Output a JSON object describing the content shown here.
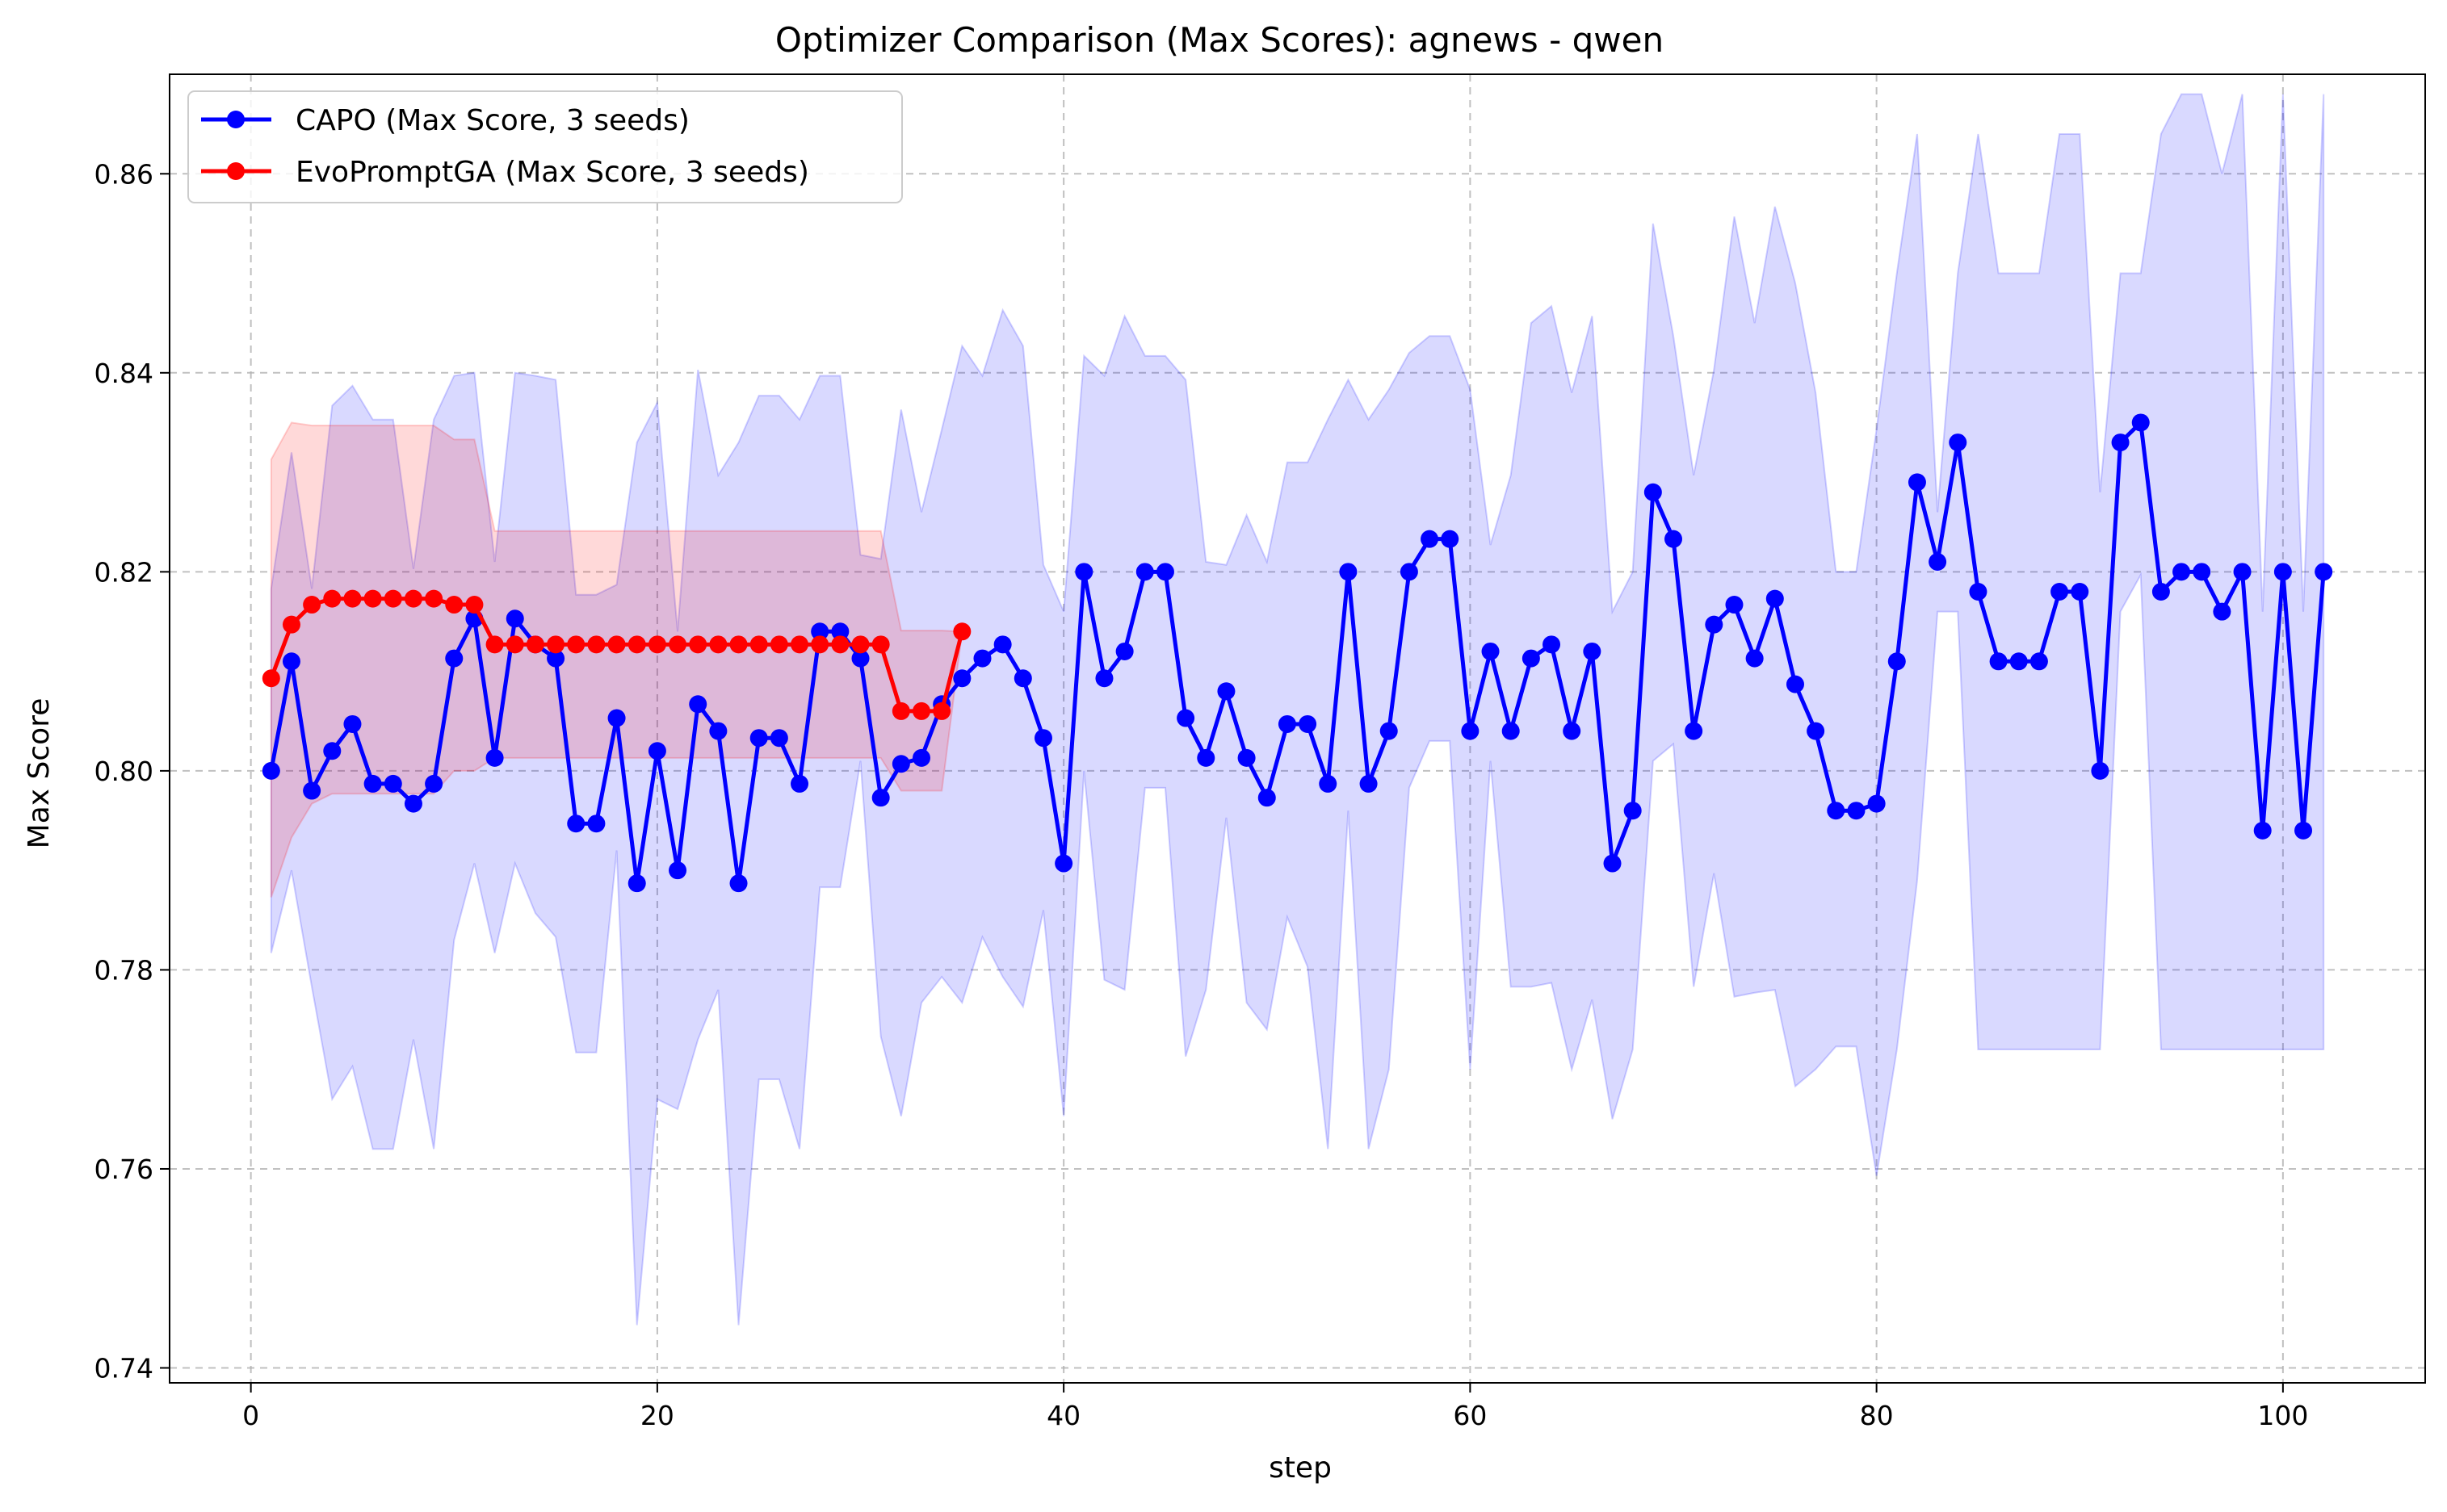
{
  "chart_data": {
    "type": "line",
    "title": "Optimizer Comparison (Max Scores): agnews - qwen",
    "xlabel": "step",
    "ylabel": "Max Score",
    "xlim": [
      -4,
      107
    ],
    "ylim": [
      0.7385,
      0.87
    ],
    "xticks": [
      0,
      20,
      40,
      60,
      80,
      100
    ],
    "xtick_labels": [
      "0",
      "20",
      "40",
      "60",
      "80",
      "100"
    ],
    "yticks": [
      0.74,
      0.76,
      0.78,
      0.8,
      0.82,
      0.84,
      0.86
    ],
    "ytick_labels": [
      "0.74",
      "0.76",
      "0.78",
      "0.80",
      "0.82",
      "0.84",
      "0.86"
    ],
    "grid": true,
    "legend_position": "top-left",
    "series": [
      {
        "name": "CAPO (Max Score, 3 seeds)",
        "color": "#0000ff",
        "band_color": "#0000ff",
        "x": [
          1,
          2,
          3,
          4,
          5,
          6,
          7,
          8,
          9,
          10,
          11,
          12,
          13,
          14,
          15,
          16,
          17,
          18,
          19,
          20,
          21,
          22,
          23,
          24,
          25,
          26,
          27,
          28,
          29,
          30,
          31,
          32,
          33,
          34,
          35,
          36,
          37,
          38,
          39,
          40,
          41,
          42,
          43,
          44,
          45,
          46,
          47,
          48,
          49,
          50,
          51,
          52,
          53,
          54,
          55,
          56,
          57,
          58,
          59,
          60,
          61,
          62,
          63,
          64,
          65,
          66,
          67,
          68,
          69,
          70,
          71,
          72,
          73,
          74,
          75,
          76,
          77,
          78,
          79,
          80,
          81,
          82,
          83,
          84,
          85,
          86,
          87,
          88,
          89,
          90,
          91,
          92,
          93,
          94,
          95,
          96,
          97,
          98,
          99,
          100,
          101,
          102
        ],
        "values": [
          0.8,
          0.811,
          0.798,
          0.802,
          0.8047,
          0.7987,
          0.7987,
          0.7967,
          0.7987,
          0.8113,
          0.8153,
          0.8013,
          0.8153,
          0.8127,
          0.8113,
          0.7947,
          0.7947,
          0.8053,
          0.7887,
          0.802,
          0.79,
          0.8067,
          0.804,
          0.7887,
          0.8033,
          0.8033,
          0.7987,
          0.814,
          0.814,
          0.8113,
          0.7973,
          0.8007,
          0.8013,
          0.8067,
          0.8093,
          0.8113,
          0.8127,
          0.8093,
          0.8033,
          0.7907,
          0.82,
          0.8093,
          0.812,
          0.82,
          0.82,
          0.8053,
          0.8013,
          0.808,
          0.8013,
          0.7973,
          0.8047,
          0.8047,
          0.7987,
          0.82,
          0.7987,
          0.804,
          0.82,
          0.8233,
          0.8233,
          0.804,
          0.812,
          0.804,
          0.8113,
          0.8127,
          0.804,
          0.812,
          0.7907,
          0.796,
          0.828,
          0.8233,
          0.804,
          0.8147,
          0.8167,
          0.8113,
          0.8173,
          0.8087,
          0.804,
          0.796,
          0.796,
          0.7967,
          0.811,
          0.829,
          0.821,
          0.833,
          0.818,
          0.811,
          0.811,
          0.811,
          0.818,
          0.818,
          0.8,
          0.833,
          0.835,
          0.818,
          0.82,
          0.82,
          0.816,
          0.82,
          0.794,
          0.82,
          0.794,
          0.82
        ],
        "lower": [
          0.7817,
          0.79,
          0.7783,
          0.767,
          0.7703,
          0.762,
          0.762,
          0.773,
          0.762,
          0.783,
          0.7907,
          0.7817,
          0.7907,
          0.7857,
          0.7833,
          0.7717,
          0.7717,
          0.792,
          0.7443,
          0.767,
          0.766,
          0.773,
          0.778,
          0.7443,
          0.769,
          0.769,
          0.762,
          0.7883,
          0.7883,
          0.801,
          0.7733,
          0.7653,
          0.7767,
          0.7793,
          0.7767,
          0.7833,
          0.7793,
          0.7763,
          0.786,
          0.7653,
          0.8,
          0.779,
          0.778,
          0.7983,
          0.7983,
          0.7713,
          0.778,
          0.7953,
          0.7767,
          0.774,
          0.7853,
          0.7803,
          0.762,
          0.796,
          0.762,
          0.77,
          0.7983,
          0.803,
          0.803,
          0.77,
          0.801,
          0.7783,
          0.7783,
          0.7787,
          0.77,
          0.777,
          0.765,
          0.772,
          0.801,
          0.8027,
          0.7783,
          0.7897,
          0.7773,
          0.7777,
          0.778,
          0.7683,
          0.77,
          0.7723,
          0.7723,
          0.7593,
          0.772,
          0.789,
          0.816,
          0.816,
          0.772,
          0.772,
          0.772,
          0.772,
          0.772,
          0.772,
          0.772,
          0.816,
          0.8197,
          0.772,
          0.772,
          0.772,
          0.772,
          0.772,
          0.772,
          0.772,
          0.772,
          0.772
        ],
        "upper": [
          0.8183,
          0.832,
          0.8183,
          0.8367,
          0.8387,
          0.8353,
          0.8353,
          0.8203,
          0.8353,
          0.8397,
          0.84,
          0.821,
          0.84,
          0.8397,
          0.8393,
          0.8177,
          0.8177,
          0.8187,
          0.833,
          0.837,
          0.814,
          0.8403,
          0.8297,
          0.833,
          0.8377,
          0.8377,
          0.8353,
          0.8397,
          0.8397,
          0.8217,
          0.8213,
          0.8363,
          0.826,
          0.8343,
          0.8427,
          0.8397,
          0.8463,
          0.8427,
          0.8207,
          0.816,
          0.8417,
          0.8397,
          0.8457,
          0.8417,
          0.8417,
          0.8393,
          0.821,
          0.8207,
          0.8257,
          0.821,
          0.831,
          0.831,
          0.8353,
          0.8393,
          0.8353,
          0.8383,
          0.842,
          0.8437,
          0.8437,
          0.8383,
          0.8227,
          0.8297,
          0.845,
          0.8467,
          0.838,
          0.8457,
          0.816,
          0.82,
          0.855,
          0.8437,
          0.8297,
          0.8403,
          0.8557,
          0.845,
          0.8567,
          0.849,
          0.838,
          0.82,
          0.82,
          0.8343,
          0.85,
          0.864,
          0.826,
          0.85,
          0.864,
          0.85,
          0.85,
          0.85,
          0.864,
          0.864,
          0.828,
          0.85,
          0.85,
          0.864,
          0.868,
          0.868,
          0.86,
          0.868,
          0.816,
          0.868,
          0.816,
          0.868
        ]
      },
      {
        "name": "EvoPromptGA (Max Score, 3 seeds)",
        "color": "#ff0000",
        "band_color": "#ff0000",
        "x": [
          1,
          2,
          3,
          4,
          5,
          6,
          7,
          8,
          9,
          10,
          11,
          12,
          13,
          14,
          15,
          16,
          17,
          18,
          19,
          20,
          21,
          22,
          23,
          24,
          25,
          26,
          27,
          28,
          29,
          30,
          31,
          32,
          33,
          34,
          35
        ],
        "values": [
          0.8093,
          0.8147,
          0.8167,
          0.8173,
          0.8173,
          0.8173,
          0.8173,
          0.8173,
          0.8173,
          0.8167,
          0.8167,
          0.8127,
          0.8127,
          0.8127,
          0.8127,
          0.8127,
          0.8127,
          0.8127,
          0.8127,
          0.8127,
          0.8127,
          0.8127,
          0.8127,
          0.8127,
          0.8127,
          0.8127,
          0.8127,
          0.8127,
          0.8127,
          0.8127,
          0.8127,
          0.806,
          0.806,
          0.806,
          0.814
        ],
        "lower": [
          0.7873,
          0.7933,
          0.7967,
          0.7977,
          0.7977,
          0.7977,
          0.7977,
          0.7977,
          0.7977,
          0.8,
          0.8,
          0.8013,
          0.8013,
          0.8013,
          0.8013,
          0.8013,
          0.8013,
          0.8013,
          0.8013,
          0.8013,
          0.8013,
          0.8013,
          0.8013,
          0.8013,
          0.8013,
          0.8013,
          0.8013,
          0.8013,
          0.8013,
          0.8013,
          0.8013,
          0.798,
          0.798,
          0.798,
          0.814
        ],
        "upper": [
          0.8313,
          0.835,
          0.8347,
          0.8347,
          0.8347,
          0.8347,
          0.8347,
          0.8347,
          0.8347,
          0.8333,
          0.8333,
          0.8241,
          0.8241,
          0.8241,
          0.8241,
          0.8241,
          0.8241,
          0.8241,
          0.8241,
          0.8241,
          0.8241,
          0.8241,
          0.8241,
          0.8241,
          0.8241,
          0.8241,
          0.8241,
          0.8241,
          0.8241,
          0.8241,
          0.8241,
          0.8141,
          0.8141,
          0.8141,
          0.814
        ]
      }
    ]
  }
}
